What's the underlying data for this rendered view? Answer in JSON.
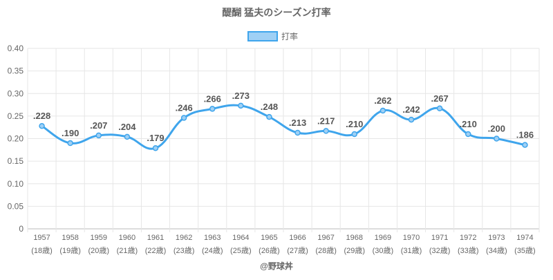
{
  "chart_data": {
    "type": "line",
    "title": "醍醐 猛夫のシーズン打率",
    "legend": {
      "label": "打率",
      "position": "top"
    },
    "categories": [
      "1957",
      "1958",
      "1959",
      "1960",
      "1961",
      "1962",
      "1963",
      "1964",
      "1965",
      "1966",
      "1967",
      "1968",
      "1969",
      "1970",
      "1971",
      "1972",
      "1973",
      "1974"
    ],
    "ages": [
      "(18歳)",
      "(19歳)",
      "(20歳)",
      "(21歳)",
      "(22歳)",
      "(23歳)",
      "(24歳)",
      "(25歳)",
      "(26歳)",
      "(27歳)",
      "(28歳)",
      "(29歳)",
      "(30歳)",
      "(31歳)",
      "(32歳)",
      "(33歳)",
      "(34歳)",
      "(35歳)"
    ],
    "series": [
      {
        "name": "打率",
        "values": [
          0.228,
          0.19,
          0.207,
          0.204,
          0.179,
          0.246,
          0.266,
          0.273,
          0.248,
          0.213,
          0.217,
          0.21,
          0.262,
          0.242,
          0.267,
          0.21,
          0.2,
          0.186
        ]
      }
    ],
    "data_labels": [
      ".228",
      ".190",
      ".207",
      ".204",
      ".179",
      ".246",
      ".266",
      ".273",
      ".248",
      ".213",
      ".217",
      ".210",
      ".262",
      ".242",
      ".267",
      ".210",
      ".200",
      ".186"
    ],
    "yticks": [
      "0",
      "0.05",
      "0.10",
      "0.15",
      "0.20",
      "0.25",
      "0.30",
      "0.35",
      "0.40"
    ],
    "ylim": [
      0,
      0.4
    ],
    "grid": true,
    "line_color": "#3fa5ec",
    "fill_color": "#9fd0f5"
  },
  "footer": "@野球丼"
}
